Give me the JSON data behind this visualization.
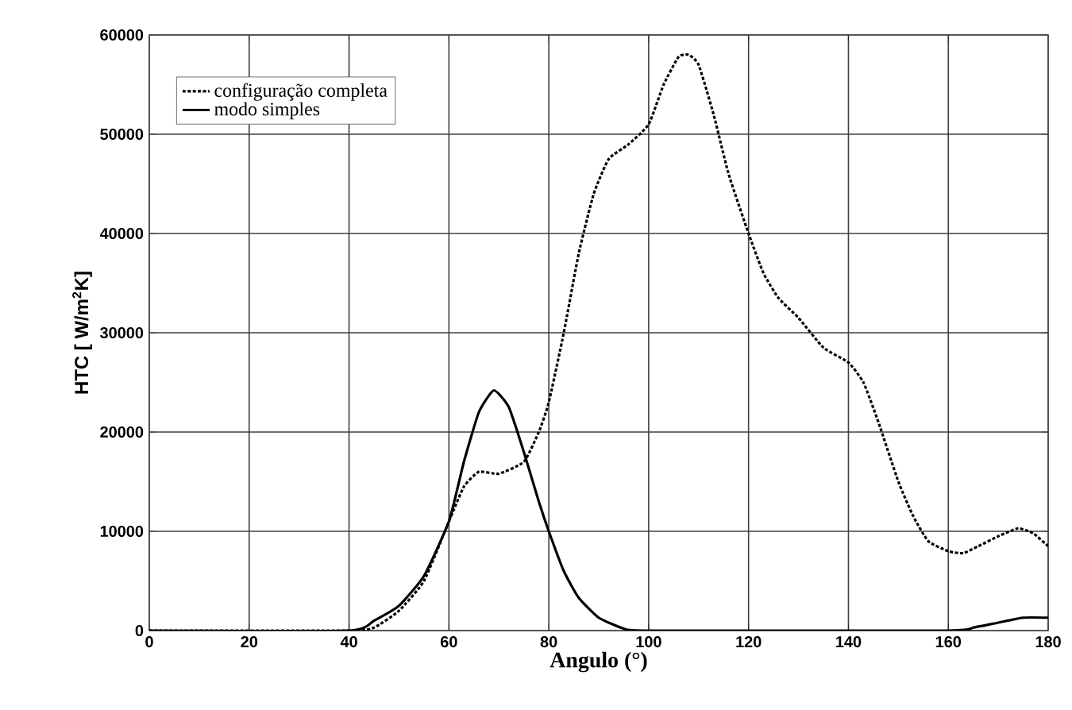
{
  "chart_data": {
    "type": "line",
    "xlabel": "Angulo (°)",
    "ylabel": "HTC [ W/m$^{2}$K]",
    "xlim": [
      0,
      180
    ],
    "ylim": [
      0,
      60000
    ],
    "xticks": [
      0,
      20,
      40,
      60,
      80,
      100,
      120,
      140,
      160,
      180
    ],
    "yticks": [
      0,
      10000,
      20000,
      30000,
      40000,
      50000,
      60000
    ],
    "grid": true,
    "legend": "top left",
    "marker": "none",
    "series": [
      {
        "name": "configuração completa",
        "color": "#000000",
        "line_style": "dotted",
        "x": [
          0,
          40,
          45,
          50,
          55,
          60,
          63,
          66,
          70,
          75,
          78,
          80,
          83,
          86,
          89,
          92,
          96,
          100,
          103,
          106,
          108,
          110,
          113,
          116,
          120,
          123,
          126,
          130,
          135,
          140,
          143,
          146,
          150,
          153,
          156,
          160,
          163,
          166,
          170,
          174,
          177,
          180
        ],
        "values": [
          0,
          0,
          300,
          2000,
          5000,
          11000,
          14500,
          16000,
          15800,
          17000,
          20000,
          23000,
          30000,
          38000,
          44000,
          47500,
          49000,
          51000,
          55000,
          57800,
          58000,
          57000,
          52000,
          46000,
          40000,
          36000,
          33500,
          31500,
          28500,
          27000,
          25000,
          21000,
          15000,
          11500,
          9000,
          8000,
          7800,
          8500,
          9500,
          10300,
          9800,
          8500
        ]
      },
      {
        "name": "modo simples",
        "color": "#000000",
        "line_style": "solid",
        "x": [
          0,
          40,
          45,
          50,
          55,
          60,
          63,
          66,
          69,
          72,
          75,
          78,
          80,
          83,
          86,
          90,
          95,
          100,
          160,
          165,
          170,
          175,
          180
        ],
        "values": [
          0,
          0,
          1000,
          2500,
          5500,
          11000,
          17000,
          22000,
          24200,
          22500,
          18000,
          13000,
          10000,
          6000,
          3300,
          1300,
          200,
          0,
          0,
          300,
          800,
          1300,
          1300
        ]
      }
    ]
  }
}
